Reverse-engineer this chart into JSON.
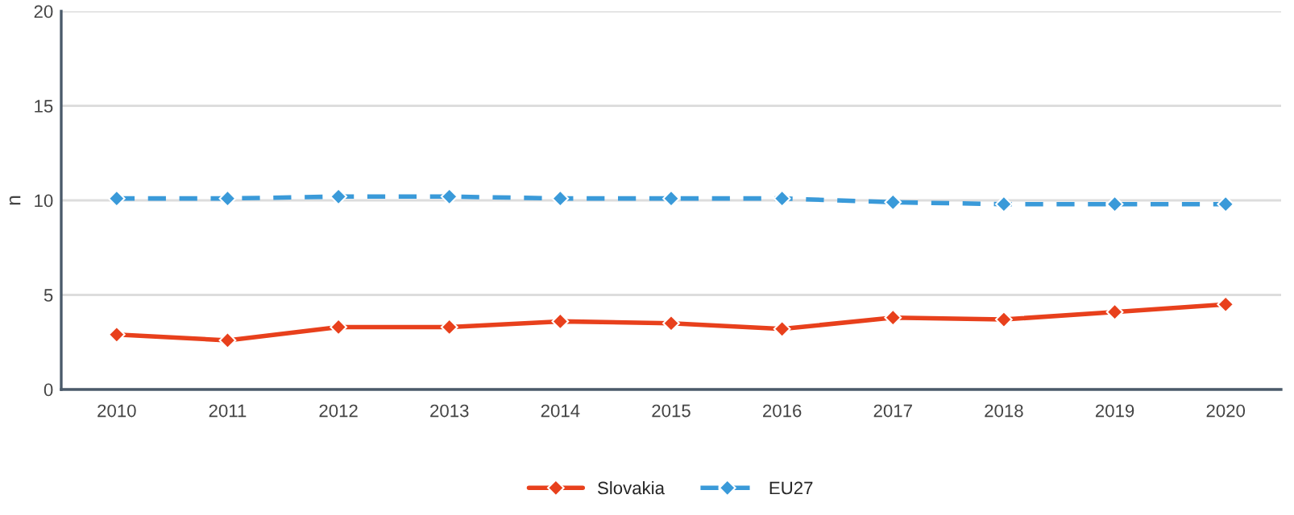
{
  "chart_data": {
    "type": "line",
    "ylabel": "n",
    "categories": [
      "2010",
      "2011",
      "2012",
      "2013",
      "2014",
      "2015",
      "2016",
      "2017",
      "2018",
      "2019",
      "2020"
    ],
    "series": [
      {
        "name": "Slovakia",
        "color": "#e8401c",
        "line_style": "solid",
        "values": [
          2.9,
          2.6,
          3.3,
          3.3,
          3.6,
          3.5,
          3.2,
          3.8,
          3.7,
          4.1,
          4.5
        ]
      },
      {
        "name": "EU27",
        "color": "#3a9ad9",
        "line_style": "dashed",
        "values": [
          10.1,
          10.1,
          10.2,
          10.2,
          10.1,
          10.1,
          10.1,
          9.9,
          9.8,
          9.8,
          9.8
        ]
      }
    ],
    "ylim": [
      0,
      20
    ],
    "yticks": [
      0,
      5,
      10,
      15,
      20
    ],
    "grid": "y",
    "legend": "bottom",
    "marker": "diamond"
  }
}
